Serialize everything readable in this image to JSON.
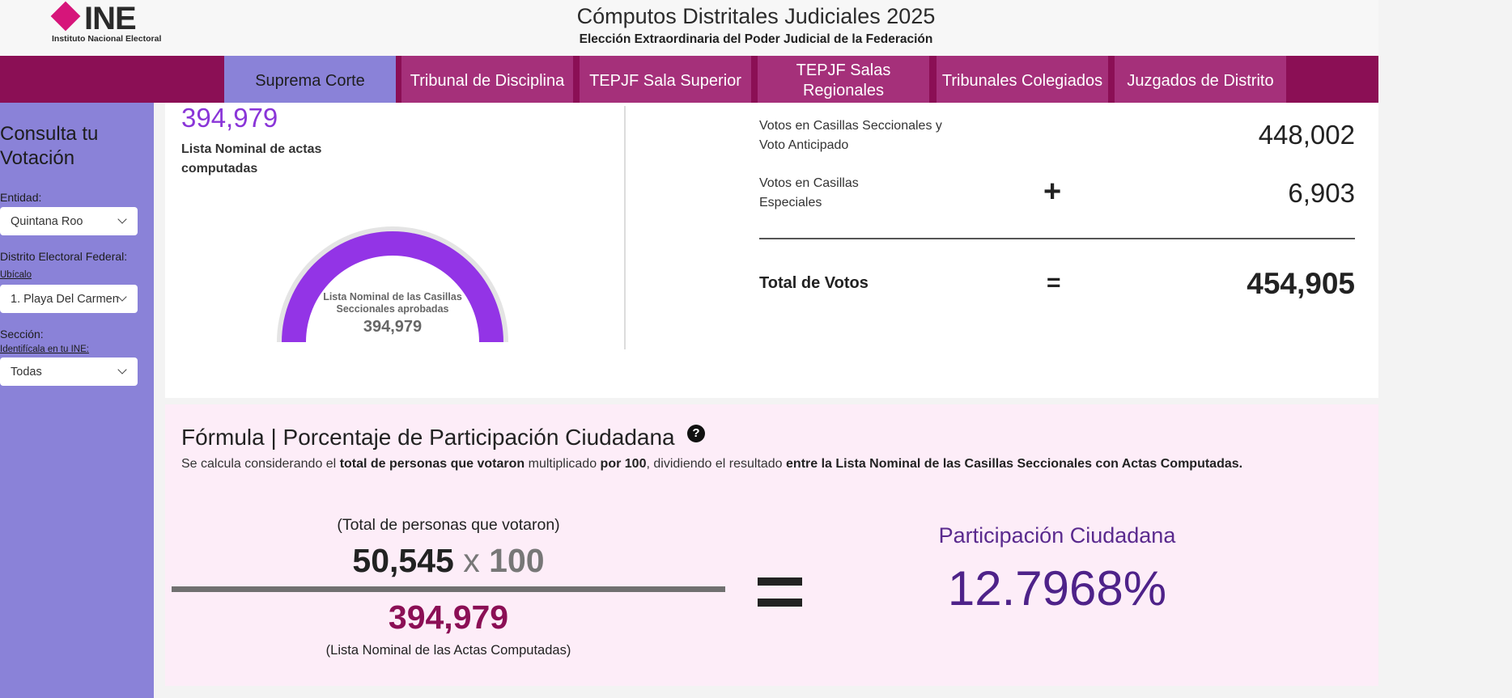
{
  "header": {
    "logo_text": "INE",
    "logo_sub": "Instituto Nacional Electoral",
    "title": "Cómputos Distritales Judiciales 2025",
    "subtitle": "Elección Extraordinaria del Poder Judicial de la Federación"
  },
  "nav": {
    "tabs": [
      {
        "label": "Suprema Corte",
        "active": true
      },
      {
        "label": "Tribunal de Disciplina",
        "active": false
      },
      {
        "label": "TEPJF Sala Superior",
        "active": false
      },
      {
        "label": "TEPJF Salas Regionales",
        "active": false
      },
      {
        "label": "Tribunales Colegiados",
        "active": false
      },
      {
        "label": "Juzgados de Distrito",
        "active": false
      }
    ]
  },
  "sidebar": {
    "title": "Consulta tu Votación",
    "entidad_label": "Entidad:",
    "entidad_value": "Quintana Roo",
    "distrito_label": "Distrito Electoral Federal:",
    "distrito_link": "Ubícalo",
    "distrito_value": "1. Playa Del Carmen",
    "seccion_label": "Sección:",
    "seccion_link": "Identifícala en tu INE:",
    "seccion_value": "Todas"
  },
  "lista_nominal": {
    "value": "394,979",
    "label": "Lista Nominal de actas computadas",
    "gauge_label": "Lista Nominal de las Casillas Seccionales aprobadas",
    "gauge_value": "394,979",
    "gauge_fill_fraction": 1.0
  },
  "votos": {
    "seccionales_label": "Votos en Casillas Seccionales y Voto Anticipado",
    "seccionales_value": "448,002",
    "especiales_label": "Votos en Casillas Especiales",
    "especiales_value": "6,903",
    "plus_sign": "+",
    "total_label": "Total de Votos",
    "equals_sign": "=",
    "total_value": "454,905"
  },
  "formula": {
    "title": "Fórmula | Porcentaje de Participación Ciudadana",
    "help_icon": "?",
    "desc_1": "Se calcula considerando el ",
    "desc_2": "total de personas que votaron",
    "desc_3": " multiplicado ",
    "desc_4": "por 100",
    "desc_5": ", dividiendo el resultado ",
    "desc_6": "entre la Lista Nominal de las Casillas Seccionales con Actas Computadas.",
    "numerator_label": "(Total de personas que votaron)",
    "numerator_value": "50,545",
    "times": "x",
    "multiplier": "100",
    "denominator_value": "394,979",
    "denominator_label": "(Lista Nominal de las Actas Computadas)",
    "result_label": "Participación Ciudadana",
    "result_value": "12.7968%"
  },
  "colors": {
    "nav_bg": "#8b0f55",
    "tab_bg": "#a5307a",
    "active_tab": "#8a82d8",
    "sidebar": "#8a82d8",
    "accent_purple": "#8a35d8",
    "formula_bg": "#fdedf8",
    "result_purple": "#4e2289"
  }
}
